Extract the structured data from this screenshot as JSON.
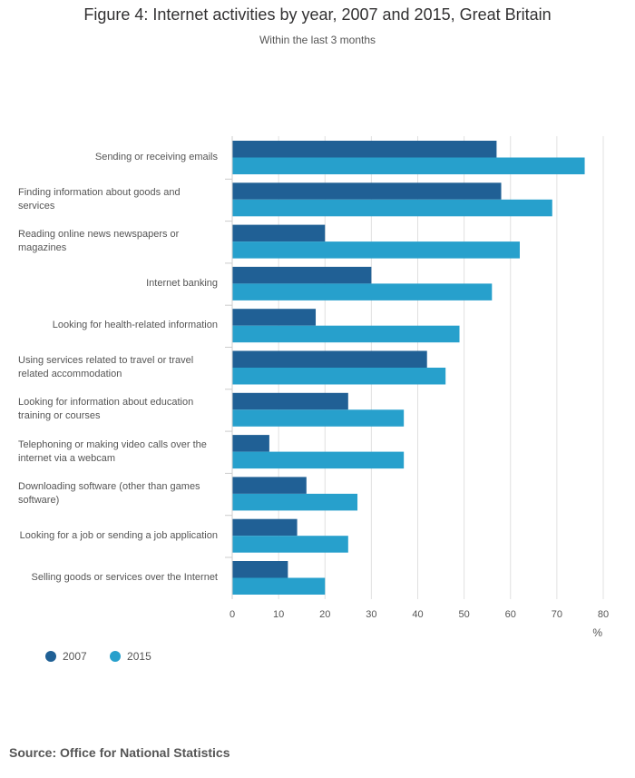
{
  "chart_data": {
    "type": "bar",
    "orientation": "horizontal",
    "title": "Figure 4: Internet activities by year, 2007 and 2015, Great Britain",
    "subtitle": "Within the last 3 months",
    "xlabel": "%",
    "xlim": [
      0,
      80
    ],
    "xticks": [
      0,
      10,
      20,
      30,
      40,
      50,
      60,
      70,
      80
    ],
    "grid": true,
    "legend_position": "bottom-left",
    "categories": [
      "Sending or receiving emails",
      "Finding information about goods and services",
      "Reading online news newspapers or magazines",
      "Internet banking",
      "Looking for health-related information",
      "Using services related to travel or travel related accommodation",
      "Looking for information about education training or courses",
      "Telephoning or making video calls over the internet via a webcam",
      "Downloading software (other than games software)",
      "Looking for a job or sending a job application",
      "Selling goods or services over the Internet"
    ],
    "series": [
      {
        "name": "2007",
        "color": "#206095",
        "values": [
          57,
          58,
          20,
          30,
          18,
          42,
          25,
          8,
          16,
          14,
          12
        ]
      },
      {
        "name": "2015",
        "color": "#27a0cc",
        "values": [
          76,
          69,
          62,
          56,
          49,
          46,
          37,
          37,
          27,
          25,
          20
        ]
      }
    ]
  },
  "source": "Source: Office for National Statistics"
}
